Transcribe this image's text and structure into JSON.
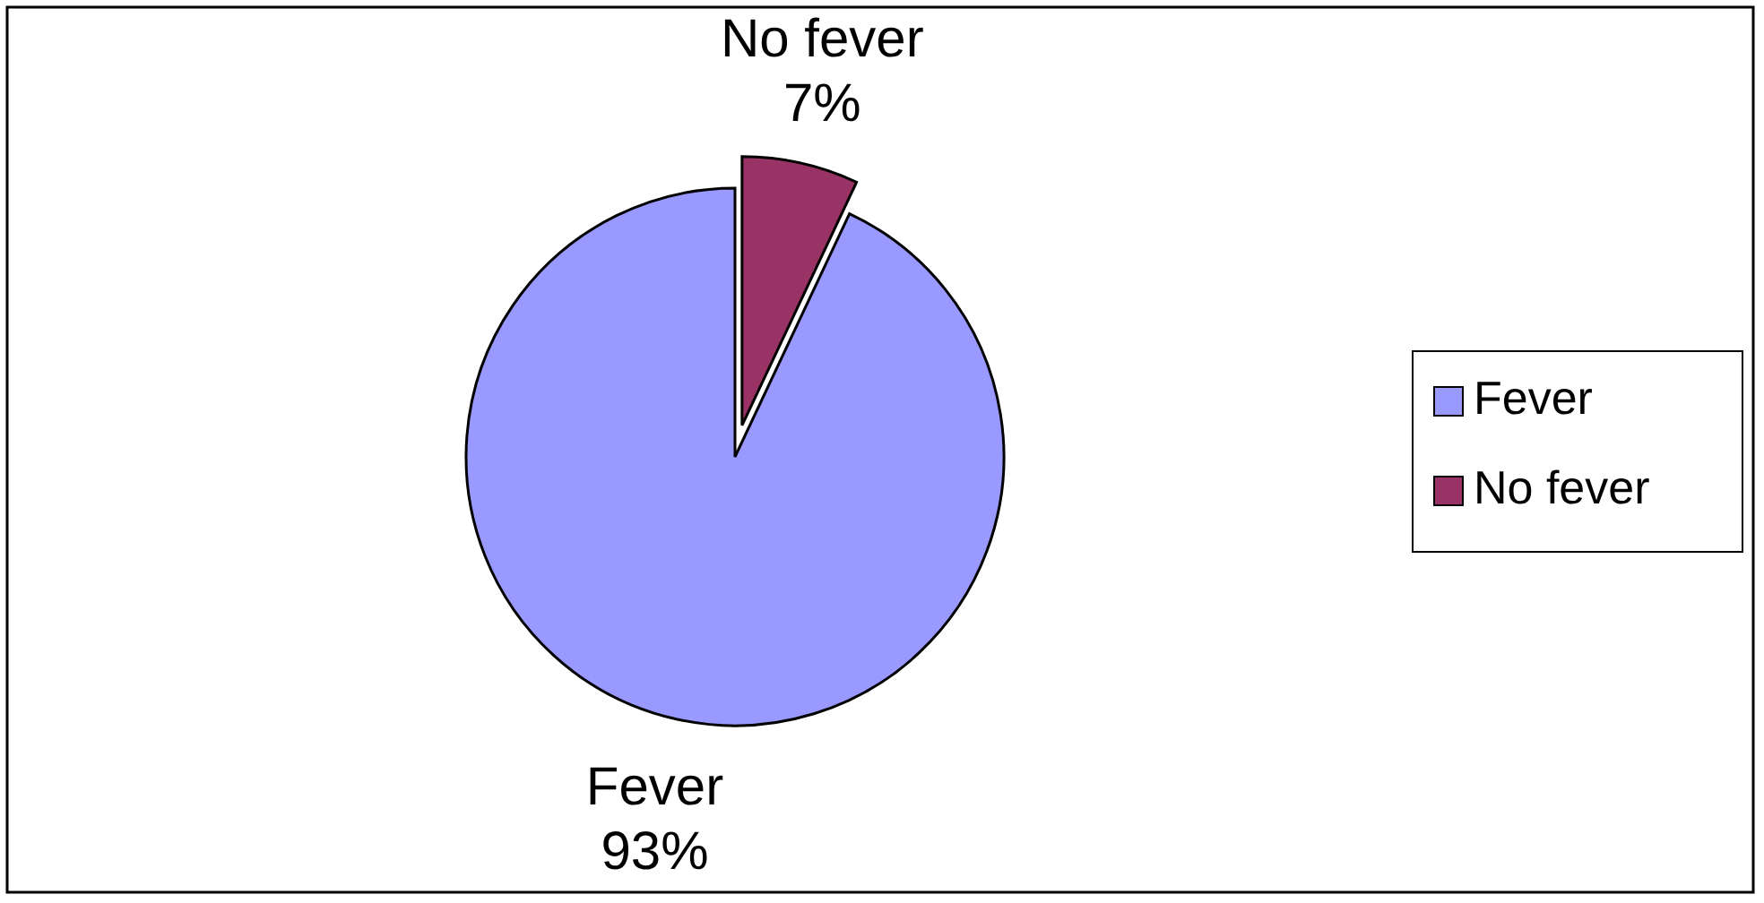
{
  "chart_data": {
    "type": "pie",
    "categories": [
      "Fever",
      "No fever"
    ],
    "values": [
      93,
      7
    ],
    "value_labels": [
      "93%",
      "7%"
    ],
    "colors": [
      "#9999ff",
      "#993366"
    ],
    "legend": "right"
  }
}
